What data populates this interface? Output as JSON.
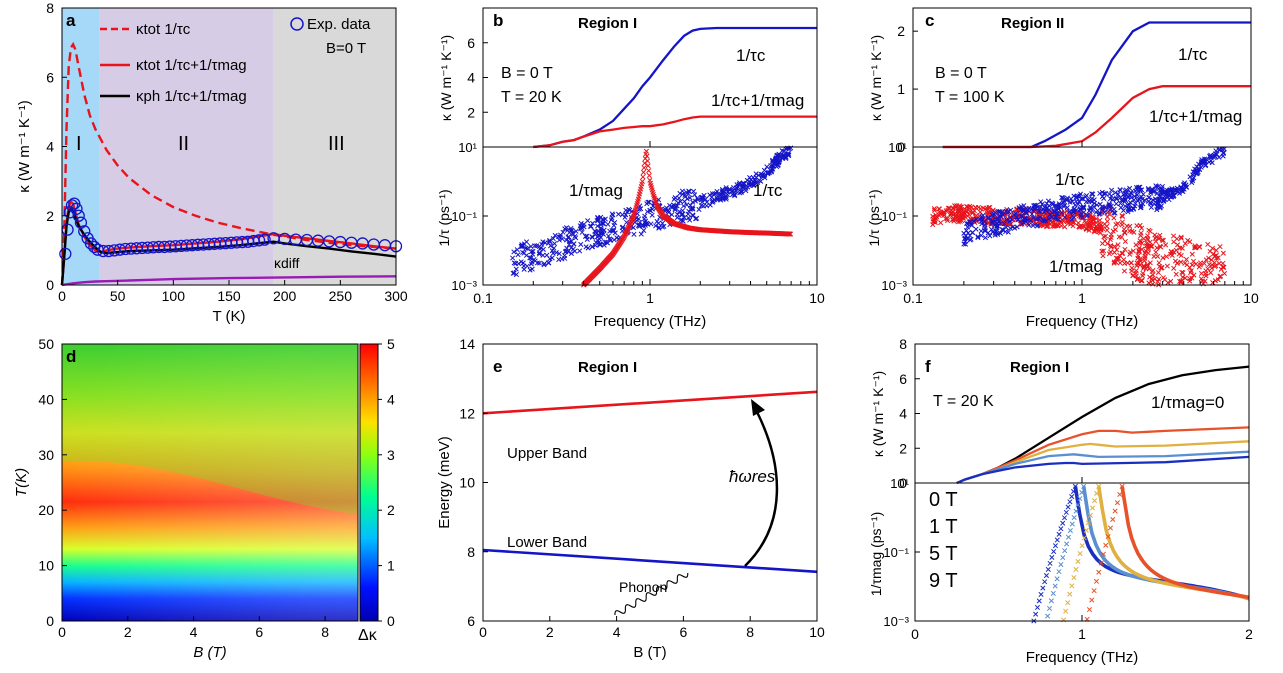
{
  "figure": {
    "panels": {
      "a": {
        "label": "a",
        "marks": {
          "I": "I",
          "II": "II",
          "III": "III"
        },
        "exp_label": "Exp. data",
        "b_label": "B=0 T",
        "diff_label": "κdiff",
        "legend": [
          "κtot 1/τc",
          "κtot 1/τc+1/τmag",
          "κph 1/τc+1/τmag"
        ]
      },
      "b": {
        "label": "b",
        "region": "Region I",
        "info": [
          "B = 0 T",
          "T = 20 K"
        ],
        "lbl_c_top": "1/τc",
        "lbl_cm_top": "1/τc+1/τmag",
        "lbl_mag_bot": "1/τmag",
        "lbl_c_bot": "1/τc"
      },
      "c": {
        "label": "c",
        "region": "Region II",
        "info": [
          "B = 0 T",
          "T = 100 K"
        ],
        "lbl_c_top": "1/τc",
        "lbl_cm_top": "1/τc+1/τmag",
        "lbl_c_bot": "1/τc",
        "lbl_mag_bot": "1/τmag"
      },
      "d": {
        "label": "d",
        "cbar_label": "Δκ"
      },
      "e": {
        "label": "e",
        "region": "Region I",
        "upper": "Upper Band",
        "lower": "Lower Band",
        "phonon": "Phonon",
        "res": "ħωres"
      },
      "f": {
        "label": "f",
        "region": "Region I",
        "info": "T = 20 K",
        "zero_label": "1/τmag=0",
        "legend": [
          "0 T",
          "1 T",
          "5 T",
          "9 T"
        ]
      }
    }
  },
  "colors": {
    "red": "#e8141c",
    "blue": "#1515c8",
    "black": "#000000",
    "purple": "#9a1ab5",
    "bg_I": "#a6d8f7",
    "bg_II": "#d7cce6",
    "bg_III": "#d9d9d9",
    "f0": "#1a2fc0",
    "f1": "#5a8fd0",
    "f5": "#e0b040",
    "f9": "#e8522a"
  },
  "chart_data": [
    {
      "panel": "a",
      "type": "line",
      "xlabel": "T (K)",
      "ylabel": "κ (W m⁻¹ K⁻¹)",
      "xlim": [
        0,
        300
      ],
      "ylim": [
        0,
        8
      ],
      "xticks": [
        0,
        50,
        100,
        150,
        200,
        250,
        300
      ],
      "yticks": [
        0,
        2,
        4,
        6,
        8
      ],
      "regions": [
        {
          "name": "I",
          "x": [
            0,
            33
          ]
        },
        {
          "name": "II",
          "x": [
            33,
            190
          ]
        },
        {
          "name": "III",
          "x": [
            190,
            300
          ]
        }
      ],
      "series": [
        {
          "name": "κtot 1/τc",
          "style": "dashed",
          "x": [
            0,
            2,
            4,
            6,
            8,
            10,
            12,
            15,
            20,
            25,
            30,
            40,
            50,
            60,
            80,
            100,
            120,
            140,
            160,
            190,
            200,
            220,
            240,
            260,
            280,
            300
          ],
          "y": [
            0,
            1.5,
            4.5,
            6.3,
            6.85,
            6.95,
            6.8,
            6.3,
            5.5,
            4.9,
            4.5,
            3.9,
            3.45,
            3.1,
            2.6,
            2.25,
            2.0,
            1.8,
            1.65,
            1.45,
            1.4,
            1.3,
            1.22,
            1.15,
            1.1,
            1.05
          ]
        },
        {
          "name": "κtot 1/τc+1/τmag",
          "x": [
            0,
            2,
            4,
            6,
            8,
            10,
            12,
            15,
            20,
            25,
            30,
            35,
            40,
            50,
            60,
            80,
            100,
            120,
            140,
            160,
            190,
            200,
            220,
            240,
            260,
            280,
            300
          ],
          "y": [
            0,
            0.8,
            1.8,
            2.25,
            2.4,
            2.35,
            2.1,
            1.75,
            1.4,
            1.15,
            1.0,
            0.95,
            1.0,
            1.05,
            1.08,
            1.12,
            1.15,
            1.2,
            1.25,
            1.32,
            1.47,
            1.42,
            1.35,
            1.27,
            1.2,
            1.12,
            1.05
          ]
        },
        {
          "name": "κph 1/τc+1/τmag",
          "x": [
            0,
            2,
            4,
            6,
            8,
            10,
            12,
            15,
            20,
            25,
            30,
            35,
            40,
            50,
            60,
            80,
            100,
            120,
            140,
            160,
            190,
            200,
            220,
            240,
            260,
            280,
            300
          ],
          "y": [
            0,
            0.8,
            1.7,
            2.1,
            2.2,
            2.1,
            1.95,
            1.7,
            1.45,
            1.25,
            1.08,
            0.95,
            0.92,
            0.95,
            0.98,
            1.0,
            1.02,
            1.06,
            1.1,
            1.15,
            1.25,
            1.2,
            1.12,
            1.05,
            0.97,
            0.9,
            0.82
          ]
        },
        {
          "name": "κdiff",
          "x": [
            0,
            10,
            20,
            30,
            40,
            60,
            80,
            100,
            150,
            200,
            250,
            300
          ],
          "y": [
            0,
            0.05,
            0.08,
            0.1,
            0.11,
            0.13,
            0.15,
            0.17,
            0.2,
            0.22,
            0.24,
            0.25
          ]
        },
        {
          "name": "Exp. data",
          "style": "markers",
          "x": [
            3,
            5,
            7,
            9,
            11,
            13,
            15,
            17,
            20,
            23,
            26,
            29,
            32,
            37,
            42,
            47,
            52,
            57,
            62,
            67,
            72,
            77,
            82,
            87,
            92,
            97,
            102,
            107,
            112,
            117,
            122,
            127,
            132,
            137,
            142,
            147,
            152,
            157,
            162,
            167,
            172,
            177,
            182,
            190,
            200,
            210,
            220,
            230,
            240,
            250,
            260,
            270,
            280,
            290,
            300
          ],
          "y": [
            0.9,
            1.6,
            2.1,
            2.3,
            2.35,
            2.2,
            2.0,
            1.8,
            1.55,
            1.35,
            1.2,
            1.1,
            1.02,
            0.98,
            0.98,
            1.0,
            1.02,
            1.04,
            1.05,
            1.06,
            1.07,
            1.08,
            1.09,
            1.1,
            1.1,
            1.11,
            1.12,
            1.13,
            1.14,
            1.15,
            1.16,
            1.17,
            1.18,
            1.19,
            1.2,
            1.21,
            1.22,
            1.23,
            1.24,
            1.25,
            1.27,
            1.29,
            1.31,
            1.35,
            1.33,
            1.31,
            1.3,
            1.28,
            1.26,
            1.24,
            1.22,
            1.2,
            1.17,
            1.15,
            1.12
          ]
        }
      ]
    },
    {
      "panel": "b-top",
      "type": "line",
      "ylabel": "κ (W m⁻¹ K⁻¹)",
      "xscale": "log",
      "xlim": [
        0.1,
        10
      ],
      "ylim": [
        0,
        8
      ],
      "yticks": [
        2,
        4,
        6
      ],
      "series": [
        {
          "name": "1/τc",
          "x": [
            0.2,
            0.25,
            0.3,
            0.35,
            0.4,
            0.5,
            0.6,
            0.7,
            0.8,
            0.9,
            1.0,
            1.2,
            1.4,
            1.6,
            1.8,
            2.0,
            2.5,
            3,
            5,
            10
          ],
          "y": [
            0,
            0.1,
            0.3,
            0.4,
            0.6,
            1.0,
            1.5,
            2.2,
            2.8,
            3.5,
            4.0,
            5.0,
            5.8,
            6.4,
            6.7,
            6.8,
            6.85,
            6.85,
            6.85,
            6.85
          ]
        },
        {
          "name": "1/τc+1/τmag",
          "x": [
            0.2,
            0.25,
            0.3,
            0.35,
            0.4,
            0.5,
            0.6,
            0.7,
            0.8,
            0.9,
            1.0,
            1.2,
            1.4,
            1.6,
            1.8,
            2.0,
            3,
            5,
            10
          ],
          "y": [
            0,
            0.1,
            0.3,
            0.4,
            0.6,
            0.9,
            1.0,
            1.1,
            1.15,
            1.2,
            1.2,
            1.3,
            1.45,
            1.6,
            1.7,
            1.75,
            1.75,
            1.75,
            1.75
          ]
        }
      ]
    },
    {
      "panel": "b-bottom",
      "type": "scatter",
      "xlabel": "Frequency (THz)",
      "ylabel": "1/τ (ps⁻¹)",
      "xscale": "log",
      "yscale": "log",
      "xlim": [
        0.1,
        10
      ],
      "ylim": [
        0.001,
        10
      ],
      "series": [
        {
          "name": "1/τc",
          "x": [
            0.15,
            0.2,
            0.25,
            0.3,
            0.35,
            0.4,
            0.5,
            0.6,
            0.7,
            0.8,
            1.0,
            1.2,
            1.5,
            2.0,
            2.5,
            3.0,
            4.0,
            5.0,
            6.0,
            7.0
          ],
          "y": [
            0.005,
            0.008,
            0.01,
            0.015,
            0.02,
            0.025,
            0.035,
            0.045,
            0.06,
            0.07,
            0.1,
            0.13,
            0.18,
            0.25,
            0.35,
            0.5,
            0.9,
            2.0,
            5.0,
            9.0
          ]
        },
        {
          "name": "1/τmag",
          "x": [
            0.4,
            0.5,
            0.6,
            0.7,
            0.8,
            0.85,
            0.9,
            0.95,
            1.0,
            1.05,
            1.1,
            1.2,
            1.4,
            1.7,
            2.0,
            3.0,
            4.0,
            5.0,
            7.0
          ],
          "y": [
            0.001,
            0.003,
            0.008,
            0.025,
            0.1,
            0.3,
            1.0,
            8.0,
            1.0,
            0.4,
            0.2,
            0.1,
            0.06,
            0.045,
            0.04,
            0.035,
            0.033,
            0.032,
            0.03
          ]
        }
      ]
    },
    {
      "panel": "c-top",
      "type": "line",
      "ylabel": "κ (W m⁻¹ K⁻¹)",
      "xscale": "log",
      "xlim": [
        0.1,
        10
      ],
      "ylim": [
        0,
        2.4
      ],
      "yticks": [
        0,
        1,
        2
      ],
      "series": [
        {
          "name": "1/τc",
          "x": [
            0.15,
            0.3,
            0.5,
            0.6,
            0.8,
            1.0,
            1.2,
            1.5,
            2.0,
            2.5,
            3.0,
            5.0,
            10
          ],
          "y": [
            0,
            0,
            0,
            0.1,
            0.3,
            0.5,
            0.9,
            1.5,
            2.0,
            2.15,
            2.15,
            2.15,
            2.15
          ]
        },
        {
          "name": "1/τc+1/τmag",
          "x": [
            0.15,
            0.3,
            0.5,
            0.7,
            1.0,
            1.2,
            1.5,
            2.0,
            2.5,
            3.0,
            5.0,
            10
          ],
          "y": [
            0,
            0,
            0,
            0.02,
            0.1,
            0.25,
            0.5,
            0.85,
            1.0,
            1.05,
            1.05,
            1.05
          ]
        }
      ]
    },
    {
      "panel": "c-bottom",
      "type": "scatter",
      "xlabel": "Frequency (THz)",
      "ylabel": "1/τ (ps⁻¹)",
      "xscale": "log",
      "yscale": "log",
      "xlim": [
        0.1,
        10
      ],
      "ylim": [
        0.001,
        10
      ],
      "series": [
        {
          "name": "1/τc",
          "x": [
            0.2,
            0.3,
            0.4,
            0.5,
            0.7,
            1.0,
            1.5,
            2.0,
            3.0,
            4.0,
            5.0,
            7.0
          ],
          "y": [
            0.03,
            0.06,
            0.08,
            0.1,
            0.15,
            0.2,
            0.25,
            0.3,
            0.35,
            0.6,
            3.0,
            8.0
          ]
        },
        {
          "name": "1/τmag",
          "x": [
            0.13,
            0.2,
            0.3,
            0.5,
            0.7,
            1.0,
            1.5,
            2.0,
            3.0,
            5.0,
            7.0
          ],
          "y": [
            0.1,
            0.12,
            0.1,
            0.1,
            0.08,
            0.08,
            0.03,
            0.01,
            0.005,
            0.003,
            0.002
          ]
        }
      ]
    },
    {
      "panel": "d",
      "type": "heatmap",
      "xlabel": "B (T)",
      "ylabel": "T(K)",
      "xlim": [
        0,
        9
      ],
      "ylim": [
        0,
        50
      ],
      "colorbar": {
        "label": "Δκ",
        "range": [
          0,
          5
        ],
        "ticks": [
          0,
          1,
          2,
          3,
          4,
          5
        ]
      },
      "description_values": {
        "peak_T": 18,
        "peak_value_B0": 5.0,
        "peak_value_B9": 4.0
      }
    },
    {
      "panel": "e",
      "type": "line",
      "xlabel": "B (T)",
      "ylabel": "Energy (meV)",
      "xlim": [
        0,
        10
      ],
      "ylim": [
        6,
        14
      ],
      "series": [
        {
          "name": "Upper Band",
          "x": [
            0,
            10
          ],
          "y": [
            12.0,
            12.62
          ]
        },
        {
          "name": "Lower Band",
          "x": [
            0,
            10
          ],
          "y": [
            8.05,
            7.42
          ]
        }
      ]
    },
    {
      "panel": "f-top",
      "type": "line",
      "ylabel": "κ (W m⁻¹ K⁻¹)",
      "xlim": [
        0,
        2
      ],
      "ylim": [
        0,
        8
      ],
      "yticks": [
        0,
        2,
        4,
        6,
        8
      ],
      "series": [
        {
          "name": "1/τmag=0",
          "x": [
            0.25,
            0.3,
            0.4,
            0.5,
            0.6,
            0.8,
            1.0,
            1.2,
            1.4,
            1.6,
            1.8,
            2.0
          ],
          "y": [
            0,
            0.2,
            0.5,
            0.9,
            1.4,
            2.6,
            3.8,
            4.9,
            5.7,
            6.2,
            6.5,
            6.7
          ]
        },
        {
          "name": "9 T",
          "x": [
            0.25,
            0.3,
            0.4,
            0.5,
            0.6,
            0.8,
            1.0,
            1.1,
            1.2,
            1.3,
            1.5,
            2.0
          ],
          "y": [
            0,
            0.2,
            0.5,
            0.9,
            1.3,
            2.2,
            2.8,
            3.0,
            3.0,
            2.9,
            3.0,
            3.2
          ]
        },
        {
          "name": "5 T",
          "x": [
            0.25,
            0.3,
            0.4,
            0.5,
            0.6,
            0.8,
            1.0,
            1.05,
            1.1,
            1.2,
            1.5,
            2.0
          ],
          "y": [
            0,
            0.2,
            0.5,
            0.8,
            1.2,
            1.9,
            2.2,
            2.25,
            2.2,
            2.1,
            2.15,
            2.4
          ]
        },
        {
          "name": "1 T",
          "x": [
            0.25,
            0.3,
            0.4,
            0.5,
            0.6,
            0.8,
            0.95,
            1.0,
            1.1,
            1.5,
            2.0
          ],
          "y": [
            0,
            0.2,
            0.5,
            0.8,
            1.1,
            1.55,
            1.65,
            1.6,
            1.5,
            1.55,
            1.8
          ]
        },
        {
          "name": "0 T",
          "x": [
            0.25,
            0.3,
            0.4,
            0.5,
            0.6,
            0.8,
            0.9,
            0.95,
            1.0,
            1.5,
            2.0
          ],
          "y": [
            0,
            0.2,
            0.5,
            0.7,
            0.9,
            1.1,
            1.15,
            1.15,
            1.1,
            1.2,
            1.5
          ]
        }
      ]
    },
    {
      "panel": "f-bottom",
      "type": "line",
      "xlabel": "Frequency (THz)",
      "ylabel": "1/τmag (ps⁻¹)",
      "xlim": [
        0,
        2
      ],
      "yscale": "log",
      "ylim": [
        0.001,
        10
      ],
      "series": [
        {
          "name": "0 T",
          "peak": 0.96
        },
        {
          "name": "1 T",
          "peak": 1.01
        },
        {
          "name": "5 T",
          "peak": 1.1
        },
        {
          "name": "9 T",
          "peak": 1.24
        }
      ]
    }
  ]
}
